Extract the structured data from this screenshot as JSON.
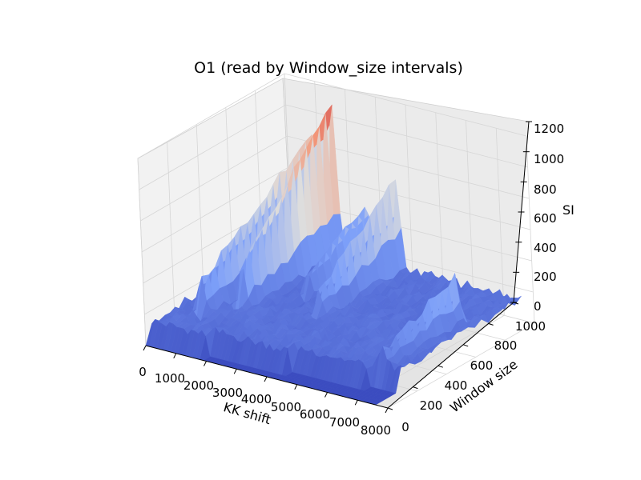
{
  "chart_data": {
    "type": "surface",
    "title": "O1 (read by Window_size intervals)",
    "xlabel": "KK shift",
    "ylabel": "Window size",
    "zlabel": "SI",
    "x_ticks": [
      "0",
      "1000",
      "2000",
      "3000",
      "4000",
      "5000",
      "6000",
      "7000",
      "8000"
    ],
    "y_ticks": [
      "0",
      "200",
      "400",
      "600",
      "800",
      "1000"
    ],
    "z_ticks": [
      "0",
      "200",
      "400",
      "600",
      "800",
      "1000",
      "1200"
    ],
    "xlim": [
      0,
      8000
    ],
    "ylim": [
      0,
      1000
    ],
    "zlim": [
      0,
      1200
    ],
    "colormap": "coolwarm",
    "grid": true,
    "background_plane_color": "#f2f2f2",
    "baseline_si": 130,
    "peaks": [
      {
        "x": 800,
        "y_min": 200,
        "y_max": 1000,
        "z": 900
      },
      {
        "x": 1500,
        "y_min": 350,
        "y_max": 1000,
        "z": 1200
      },
      {
        "x": 2550,
        "y_min": 550,
        "y_max": 1000,
        "z": 520
      },
      {
        "x": 3550,
        "y_min": 450,
        "y_max": 1000,
        "z": 700
      },
      {
        "x": 7000,
        "y_min": 150,
        "y_max": 700,
        "z": 420
      }
    ]
  }
}
